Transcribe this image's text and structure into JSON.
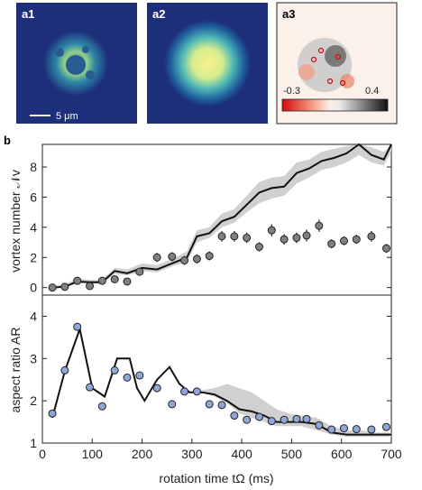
{
  "panels": {
    "a1_label": "a1",
    "a2_label": "a2",
    "a3_label": "a3",
    "b_label": "b",
    "scalebar_label": "5 μm",
    "colorbar_min": "-0.3",
    "colorbar_max": "0.4"
  },
  "colors": {
    "line": "#111111",
    "band": "#d0d0d0",
    "vortex_marker": "#808080",
    "ar_marker": "#8fa6d6"
  },
  "chart_data": [
    {
      "type": "line",
      "panel": "b-top",
      "ylabel": "vortex number 𝒩v",
      "xlim": [
        0,
        700
      ],
      "ylim": [
        -0.5,
        9.5
      ],
      "yticks": [
        0,
        2,
        4,
        6,
        8
      ],
      "xticks": [
        0,
        100,
        200,
        300,
        400,
        500,
        600,
        700
      ],
      "series": [
        {
          "kind": "line",
          "x": [
            20,
            45,
            70,
            95,
            120,
            145,
            170,
            200,
            230,
            260,
            290,
            310,
            335,
            360,
            385,
            410,
            435,
            460,
            485,
            510,
            535,
            560,
            585,
            610,
            635,
            660,
            685,
            700
          ],
          "values": [
            0.0,
            0.05,
            0.4,
            0.35,
            0.35,
            1.1,
            0.95,
            1.3,
            1.2,
            1.6,
            2.0,
            3.4,
            3.6,
            4.4,
            4.7,
            5.5,
            6.3,
            6.6,
            6.7,
            7.6,
            7.9,
            8.4,
            8.6,
            8.9,
            9.5,
            8.8,
            8.5,
            9.6
          ],
          "band_lower": [
            0.0,
            0.0,
            0.3,
            0.25,
            0.25,
            0.9,
            0.8,
            1.1,
            1.0,
            1.4,
            1.7,
            3.0,
            3.3,
            4.0,
            4.3,
            5.0,
            5.6,
            5.9,
            6.1,
            6.9,
            7.3,
            7.8,
            8.0,
            8.3,
            8.8,
            8.3,
            8.1,
            9.0
          ],
          "band_upper": [
            0.1,
            0.2,
            0.6,
            0.5,
            0.5,
            1.3,
            1.2,
            1.6,
            1.5,
            1.9,
            2.4,
            3.8,
            4.0,
            4.9,
            5.2,
            6.1,
            7.0,
            7.3,
            7.4,
            8.3,
            8.5,
            9.0,
            9.2,
            9.4,
            9.6,
            9.3,
            9.0,
            9.6
          ]
        },
        {
          "kind": "points",
          "x": [
            20,
            45,
            70,
            95,
            120,
            145,
            170,
            195,
            230,
            260,
            285,
            310,
            335,
            360,
            385,
            410,
            435,
            460,
            485,
            510,
            530,
            555,
            580,
            605,
            630,
            660,
            690
          ],
          "values": [
            0.0,
            0.05,
            0.45,
            0.1,
            0.45,
            0.55,
            0.4,
            1.05,
            2.0,
            2.05,
            1.8,
            1.9,
            2.1,
            3.4,
            3.4,
            3.3,
            2.7,
            3.8,
            3.2,
            3.3,
            3.45,
            4.1,
            2.9,
            3.1,
            3.2,
            3.4,
            2.6
          ],
          "err": [
            0.1,
            0.1,
            0.15,
            0.15,
            0.15,
            0.15,
            0.15,
            0.25,
            0.3,
            0.3,
            0.3,
            0.3,
            0.3,
            0.35,
            0.35,
            0.35,
            0.3,
            0.4,
            0.35,
            0.35,
            0.4,
            0.4,
            0.3,
            0.3,
            0.3,
            0.35,
            0.3
          ]
        }
      ]
    },
    {
      "type": "line",
      "panel": "b-bottom",
      "xlabel": "rotation time tΩ (ms)",
      "ylabel": "aspect ratio AR",
      "xlim": [
        0,
        700
      ],
      "ylim": [
        1,
        4.5
      ],
      "yticks": [
        1,
        2,
        3,
        4
      ],
      "xticks": [
        0,
        100,
        200,
        300,
        400,
        500,
        600,
        700
      ],
      "xticklabels": [
        "0",
        "100",
        "200",
        "300",
        "400",
        "500",
        "600",
        "700"
      ],
      "series": [
        {
          "kind": "line",
          "x": [
            20,
            45,
            75,
            100,
            125,
            150,
            175,
            190,
            205,
            230,
            255,
            275,
            295,
            320,
            345,
            370,
            395,
            420,
            445,
            470,
            495,
            520,
            550,
            580,
            610,
            640,
            670,
            700
          ],
          "values": [
            1.6,
            2.7,
            3.7,
            2.3,
            2.1,
            3.0,
            3.0,
            2.3,
            2.0,
            2.5,
            2.8,
            2.4,
            2.2,
            2.2,
            2.15,
            2.0,
            1.8,
            1.75,
            1.65,
            1.5,
            1.5,
            1.5,
            1.45,
            1.25,
            1.2,
            1.2,
            1.2,
            1.2
          ],
          "band_lower": [
            1.6,
            2.7,
            3.7,
            2.3,
            2.1,
            3.0,
            3.0,
            2.3,
            2.0,
            2.5,
            2.8,
            2.4,
            2.2,
            2.2,
            2.1,
            1.95,
            1.7,
            1.6,
            1.5,
            1.4,
            1.4,
            1.4,
            1.3,
            1.2,
            1.15,
            1.15,
            1.15,
            1.15
          ],
          "band_upper": [
            1.6,
            2.7,
            3.7,
            2.3,
            2.1,
            3.0,
            3.0,
            2.3,
            2.0,
            2.5,
            2.8,
            2.4,
            2.2,
            2.25,
            2.3,
            2.4,
            2.3,
            2.2,
            2.0,
            1.8,
            1.7,
            1.65,
            1.6,
            1.4,
            1.3,
            1.3,
            1.25,
            1.25
          ]
        },
        {
          "kind": "points",
          "x": [
            20,
            45,
            70,
            95,
            120,
            145,
            170,
            195,
            230,
            260,
            285,
            310,
            335,
            360,
            385,
            410,
            435,
            460,
            485,
            510,
            530,
            555,
            580,
            605,
            630,
            660,
            690
          ],
          "values": [
            1.7,
            2.72,
            3.75,
            2.32,
            1.87,
            2.72,
            2.55,
            2.6,
            2.3,
            1.92,
            2.22,
            2.22,
            1.92,
            1.9,
            1.65,
            1.55,
            1.62,
            1.52,
            1.55,
            1.57,
            1.57,
            1.42,
            1.32,
            1.35,
            1.33,
            1.32,
            1.38
          ]
        }
      ]
    }
  ]
}
